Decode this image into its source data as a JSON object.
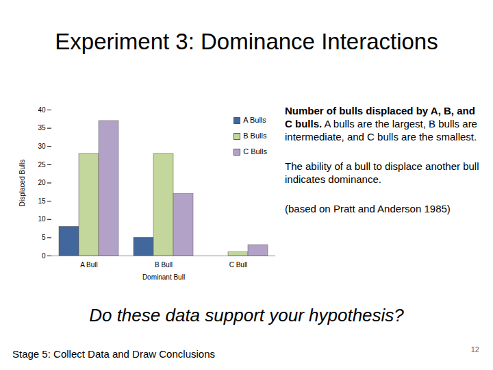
{
  "chart_data": {
    "type": "bar",
    "title": "Experiment 3: Dominance Interactions",
    "xlabel": "Dominant Bull",
    "ylabel": "Displaced Bulls",
    "categories": [
      "A Bull",
      "B Bull",
      "C Bull"
    ],
    "series": [
      {
        "name": "A Bulls",
        "color": "#41679c",
        "values": [
          8,
          5,
          0
        ]
      },
      {
        "name": "B Bulls",
        "color": "#c3d69b",
        "values": [
          28,
          28,
          1
        ]
      },
      {
        "name": "C Bulls",
        "color": "#b3a2c7",
        "values": [
          37,
          17,
          3
        ]
      }
    ],
    "ylim": [
      0,
      40
    ],
    "yticks": [
      0,
      5,
      10,
      15,
      20,
      25,
      30,
      35,
      40
    ],
    "grid": false,
    "legend": "upper right",
    "annotations": [
      "Number of bulls displaced by A, B, and C bulls.",
      "A bulls are the largest, B bulls are intermediate, and C bulls are the smallest.",
      "The ability of a bull to displace another bull indicates dominance.",
      "(based on Pratt and Anderson 1985)"
    ]
  },
  "question": "Do these data support your hypothesis?",
  "footer": "Stage 5: Collect Data and Draw Conclusions",
  "page_number": 12
}
